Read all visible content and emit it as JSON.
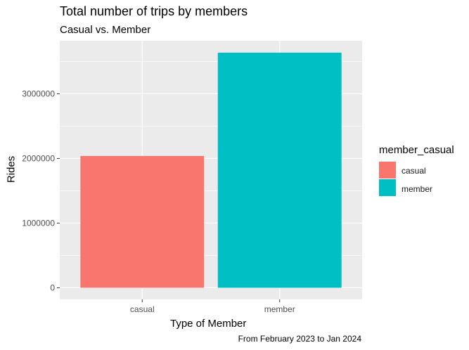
{
  "chart_data": {
    "type": "bar",
    "title": "Total number of trips by members",
    "subtitle": "Casual vs. Member",
    "caption": "From February 2023 to Jan 2024",
    "xlabel": "Type of Member",
    "ylabel": "Rides",
    "categories": [
      "casual",
      "member"
    ],
    "values": [
      2038000,
      3636000
    ],
    "colors": [
      "#F8766D",
      "#00BFC4"
    ],
    "ylim": [
      -180000,
      3820000
    ],
    "yticks": [
      0,
      1000000,
      2000000,
      3000000
    ],
    "ytick_labels": [
      "0",
      "1000000",
      "2000000",
      "3000000"
    ],
    "grid": true,
    "panel_background": "#EBEBEB",
    "legend": {
      "title": "member_casual",
      "placement": "right",
      "entries": [
        {
          "label": "casual",
          "color": "#F8766D"
        },
        {
          "label": "member",
          "color": "#00BFC4"
        }
      ]
    }
  }
}
